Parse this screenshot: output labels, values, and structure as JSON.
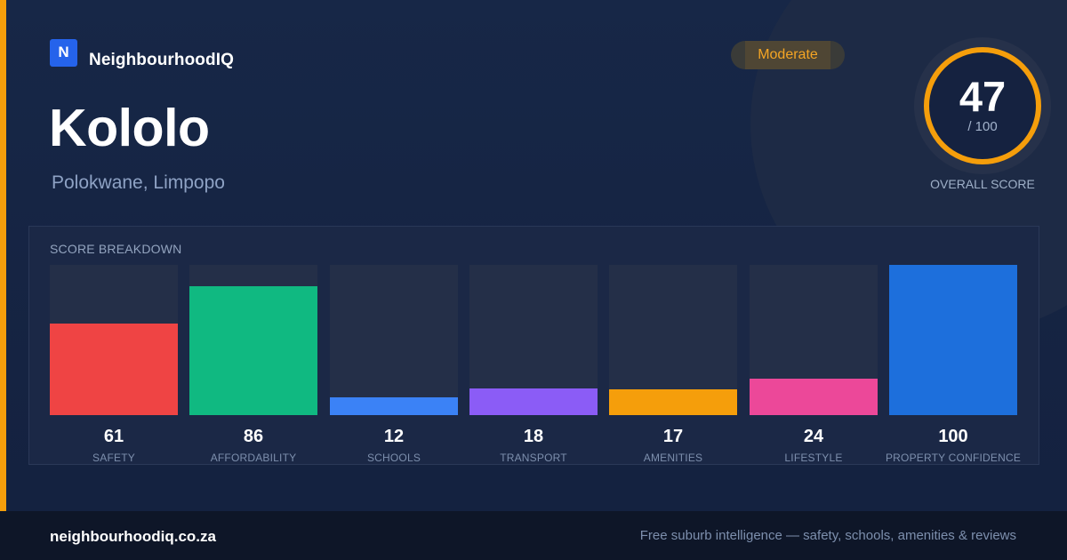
{
  "brand": {
    "logo_letter": "N",
    "name": "NeighbourhoodIQ",
    "logo_color": "#2563eb"
  },
  "suburb": {
    "name": "Kololo",
    "location": "Polokwane, Limpopo"
  },
  "rating": {
    "label": "Moderate",
    "color": "#f5a524"
  },
  "overall": {
    "score": "47",
    "max": "/ 100",
    "score_fraction": 0.47,
    "label": "OVERALL SCORE",
    "ring_color": "#f59e0b"
  },
  "breakdown": {
    "title": "SCORE BREAKDOWN"
  },
  "chart_data": {
    "type": "bar",
    "title": "SCORE BREAKDOWN",
    "categories": [
      "SAFETY",
      "AFFORDABILITY",
      "SCHOOLS",
      "TRANSPORT",
      "AMENITIES",
      "LIFESTYLE",
      "PROPERTY CONFIDENCE"
    ],
    "values": [
      61,
      86,
      12,
      18,
      17,
      24,
      100
    ],
    "colors": [
      "#ef4444",
      "#10b981",
      "#3b82f6",
      "#8b5cf6",
      "#f59e0b",
      "#ec4899",
      "#1d6fdc"
    ],
    "ylim": [
      0,
      100
    ],
    "grid": false
  },
  "footer": {
    "domain": "neighbourhoodiq.co.za",
    "tagline": "Free suburb intelligence — safety, schools, amenities & reviews"
  }
}
